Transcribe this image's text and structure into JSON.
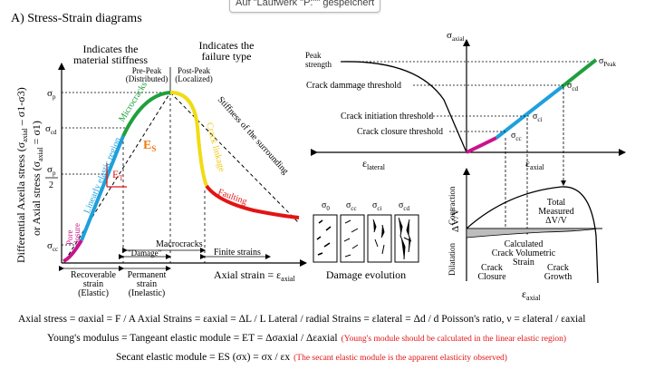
{
  "tooltip": "Auf \"Laufwerk \"P:\"\" gespeichert",
  "title": "A) Stress-Strain diagrams",
  "left": {
    "yaxis_line1": "Differential Axeila stress (σ",
    "yaxis_line1_sub": "axial",
    "yaxis_line1_end": " – σ1-σ3)",
    "yaxis_line2": "or Axial stress (σ",
    "yaxis_line2_end": " = σ1)",
    "header_stiffness": [
      "Indicates the",
      "material stiffness"
    ],
    "header_failure": [
      "Indicates the",
      "failure type"
    ],
    "prepeak": [
      "Pre-Peak",
      "(Distributed)"
    ],
    "postpeak": [
      "Post-Peak",
      "(Localized)"
    ],
    "microcracks": "Microcracks",
    "linear_region": "Linearly elastic region",
    "pore_closure": [
      "Pore",
      "closure"
    ],
    "crack_linkage": "Crack linkage",
    "stiffness_surrounding": "Stiffness of the surrounding",
    "faulting": "Faulting",
    "es_label": "E",
    "es_sub": "S",
    "et_label": "E",
    "et_sub": "T",
    "sigma_p": "σ",
    "sigma_p_sub": "p",
    "sigma_cd": "σ",
    "sigma_cd_sub": "cd",
    "sigma_half": "σ",
    "sigma_half_sub": "p",
    "half_denominator": "2",
    "sigma_cc": "σ",
    "sigma_cc_sub": "cc",
    "macrocracks": "Macrocracks",
    "damage": "\"Damage\"",
    "finite_strains": "Finite strains",
    "recoverable": [
      "Recoverable",
      "strain",
      "(Elastic)"
    ],
    "permanent": [
      "Permanent",
      "strain",
      "(Inelastic)"
    ],
    "xaxis": "Axial strain = ε",
    "xaxis_sub": "axial"
  },
  "right": {
    "sigma_axial": "σ",
    "sigma_axial_sub": "axial",
    "peak_strength": [
      "Peak",
      "strength"
    ],
    "sigma_peak": "σ",
    "sigma_peak_sub": "Peak",
    "crack_damage": "Crack dammage threshold",
    "crack_initiation": "Crack initiation threshold",
    "crack_closure": "Crack closure threshold",
    "sigma_cd": "σ",
    "sigma_cd_sub": "cd",
    "sigma_ci": "σ",
    "sigma_ci_sub": "ci",
    "sigma_cc": "σ",
    "sigma_cc_sub": "cc",
    "eps_lateral": "ε",
    "eps_lateral_sub": "lateral",
    "eps_axial": "ε",
    "eps_axial_sub": "axial",
    "contraction": "Contraction",
    "dilatation": "Dilatation",
    "dvv": "ΔV/V",
    "total_measured": [
      "Total",
      "Measured",
      "ΔV/V"
    ],
    "calculated": [
      "Calculated",
      "Crack Volumetric",
      "Strain"
    ],
    "crack_closure_lbl": [
      "Crack",
      "Closure"
    ],
    "crack_growth": [
      "Crack",
      "Growth"
    ],
    "eps_axial_bottom": "ε",
    "eps_axial_bottom_sub": "axial",
    "damage_evolution": "Damage evolution",
    "damage_boxes": [
      {
        "label": "σ",
        "sub": "0"
      },
      {
        "label": "σ",
        "sub": "cc"
      },
      {
        "label": "σ",
        "sub": "ci"
      },
      {
        "label": "σ",
        "sub": "cd"
      }
    ]
  },
  "formulas": {
    "line1": "Axial stress = σaxial = F / A      Axial Strains = εaxial = ΔL / L   Lateral / radial Strains = εlateral = Δd / d      Poisson's ratio, ν = εlateral / εaxial",
    "line2_black": "Young's modulus = Tangeant elastic module = ET = Δσaxial / Δεaxial",
    "line2_red": "(Young's module should be calculated in the linear elastic region)",
    "line3_black": "Secant elastic module  = ES (σx) = σx / εx",
    "line3_red": "(The secant elastic module is the apparent elasticity observed)"
  },
  "colors": {
    "magenta": "#c8148c",
    "blue": "#1ea0dc",
    "green": "#1ea03c",
    "yellow": "#f0dc14",
    "red": "#e31414",
    "orange": "#f07814",
    "gray": "#bdbdbd"
  }
}
